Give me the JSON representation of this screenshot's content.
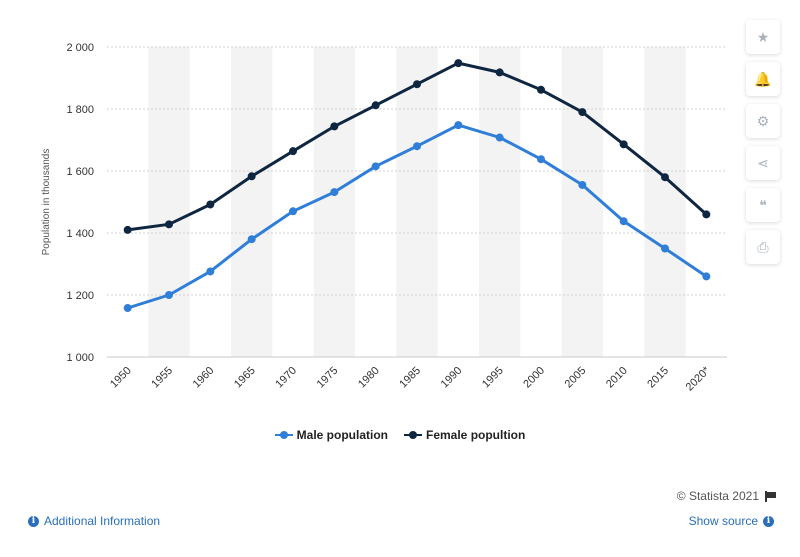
{
  "chart_data": {
    "type": "line",
    "categories": [
      "1950",
      "1955",
      "1960",
      "1965",
      "1970",
      "1975",
      "1980",
      "1985",
      "1990",
      "1995",
      "2000",
      "2005",
      "2010",
      "2015",
      "2020*"
    ],
    "series": [
      {
        "name": "Male population",
        "color": "#2f7ed8",
        "values": [
          1158,
          1200,
          1276,
          1380,
          1470,
          1532,
          1615,
          1680,
          1748,
          1708,
          1638,
          1555,
          1438,
          1350,
          1260
        ]
      },
      {
        "name": "Female popultion",
        "color": "#0f2640",
        "values": [
          1410,
          1428,
          1492,
          1583,
          1664,
          1744,
          1812,
          1880,
          1948,
          1918,
          1862,
          1790,
          1686,
          1580,
          1460
        ]
      }
    ],
    "yticks": [
      "1 000",
      "1 200",
      "1 400",
      "1 600",
      "1 800",
      "2 000"
    ],
    "ylim": [
      1000,
      2000
    ],
    "ylabel": "Population in thousands",
    "xlabel": "",
    "title": "",
    "grid": true,
    "legend_position": "bottom-center"
  },
  "sidebar": {
    "icons": [
      "star-icon",
      "bell-icon",
      "gear-icon",
      "share-icon",
      "quote-icon",
      "print-icon"
    ],
    "glyphs": [
      "★",
      "🔔",
      "⚙",
      "⋖",
      "❝",
      "⎙"
    ]
  },
  "footer": {
    "credit": "© Statista 2021",
    "additional_info": "Additional Information",
    "show_source": "Show source"
  }
}
